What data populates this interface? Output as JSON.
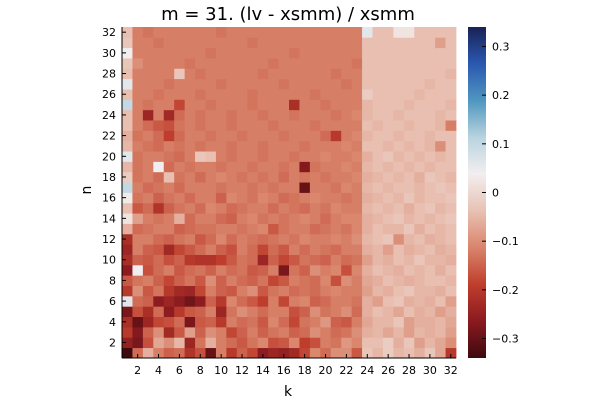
{
  "chart_data": {
    "type": "heatmap",
    "title": "m = 31. (lv - xsmm) / xsmm",
    "xlabel": "k",
    "ylabel": "n",
    "x_range": [
      1,
      32
    ],
    "y_range": [
      1,
      32
    ],
    "x_ticks": [
      2,
      4,
      6,
      8,
      10,
      12,
      14,
      16,
      18,
      20,
      22,
      24,
      26,
      28,
      30,
      32
    ],
    "y_ticks": [
      2,
      4,
      6,
      8,
      10,
      12,
      14,
      16,
      18,
      20,
      22,
      24,
      26,
      28,
      30,
      32
    ],
    "colorbar": {
      "range": [
        -0.34,
        0.34
      ],
      "ticks": [
        -0.3,
        -0.2,
        -0.1,
        0,
        0.1,
        0.2,
        0.3
      ],
      "tick_labels": [
        "−0.3",
        "−0.2",
        "−0.1",
        "0",
        "0.1",
        "0.2",
        "0.3"
      ],
      "colormap": [
        "#3d0a0e",
        "#8a1a1f",
        "#bf3e2d",
        "#d9846b",
        "#e8c1b3",
        "#f2efef",
        "#b9d3df",
        "#4f96c0",
        "#2a58b0",
        "#1a2156"
      ]
    },
    "z": [
      [
        -0.34,
        -0.14,
        -0.06,
        -0.12,
        -0.15,
        -0.14,
        -0.21,
        -0.17,
        -0.3,
        -0.12,
        -0.2,
        -0.15,
        -0.18,
        -0.26,
        -0.24,
        -0.25,
        -0.23,
        -0.18,
        -0.11,
        -0.14,
        -0.1,
        -0.1,
        -0.16,
        -0.03,
        -0.05,
        -0.02,
        -0.05,
        -0.04,
        -0.06,
        -0.03,
        -0.07,
        -0.2
      ],
      [
        -0.25,
        -0.28,
        -0.17,
        -0.07,
        -0.1,
        -0.05,
        -0.24,
        -0.13,
        -0.06,
        -0.12,
        -0.14,
        -0.16,
        -0.13,
        -0.11,
        -0.17,
        -0.16,
        -0.11,
        -0.19,
        -0.17,
        -0.12,
        -0.13,
        -0.09,
        -0.11,
        -0.04,
        -0.04,
        -0.02,
        -0.06,
        -0.03,
        -0.08,
        -0.05,
        -0.07,
        -0.1
      ],
      [
        -0.2,
        -0.27,
        -0.15,
        -0.1,
        -0.23,
        -0.16,
        -0.08,
        -0.15,
        -0.1,
        -0.12,
        -0.18,
        -0.15,
        -0.12,
        -0.15,
        -0.13,
        -0.12,
        -0.15,
        -0.14,
        -0.1,
        -0.12,
        -0.14,
        -0.13,
        -0.1,
        -0.06,
        -0.05,
        -0.07,
        -0.05,
        -0.08,
        -0.05,
        -0.06,
        -0.05,
        -0.08
      ],
      [
        -0.22,
        -0.3,
        -0.24,
        -0.18,
        -0.17,
        -0.14,
        -0.28,
        -0.16,
        -0.15,
        -0.2,
        -0.12,
        -0.14,
        -0.13,
        -0.16,
        -0.11,
        -0.14,
        -0.18,
        -0.13,
        -0.12,
        -0.09,
        -0.15,
        -0.16,
        -0.12,
        -0.07,
        -0.05,
        -0.05,
        -0.03,
        -0.08,
        -0.06,
        -0.06,
        -0.05,
        -0.07
      ],
      [
        -0.28,
        -0.17,
        -0.22,
        -0.14,
        -0.26,
        -0.2,
        -0.16,
        -0.15,
        -0.12,
        -0.24,
        -0.13,
        -0.1,
        -0.12,
        -0.14,
        -0.12,
        -0.12,
        -0.17,
        -0.15,
        -0.1,
        -0.13,
        -0.12,
        -0.1,
        -0.14,
        -0.06,
        -0.04,
        -0.05,
        -0.07,
        -0.04,
        -0.06,
        -0.05,
        -0.08,
        -0.06
      ],
      [
        0.06,
        -0.14,
        -0.15,
        -0.26,
        -0.24,
        -0.26,
        -0.29,
        -0.26,
        -0.15,
        -0.2,
        -0.11,
        -0.14,
        -0.16,
        -0.19,
        -0.12,
        -0.18,
        -0.12,
        -0.11,
        -0.15,
        -0.14,
        -0.12,
        -0.12,
        -0.13,
        -0.06,
        -0.08,
        -0.04,
        -0.03,
        -0.06,
        -0.05,
        -0.06,
        -0.04,
        -0.08
      ],
      [
        -0.2,
        -0.1,
        -0.16,
        -0.13,
        -0.2,
        -0.23,
        -0.24,
        -0.18,
        -0.12,
        -0.15,
        -0.16,
        -0.12,
        -0.1,
        -0.16,
        -0.13,
        -0.12,
        -0.14,
        -0.13,
        -0.14,
        -0.12,
        -0.11,
        -0.12,
        -0.12,
        -0.08,
        -0.05,
        -0.06,
        -0.04,
        -0.03,
        -0.05,
        -0.05,
        -0.06,
        -0.04
      ],
      [
        -0.16,
        -0.13,
        -0.12,
        -0.15,
        -0.18,
        -0.15,
        -0.13,
        -0.16,
        -0.1,
        -0.15,
        -0.12,
        -0.14,
        -0.15,
        -0.13,
        -0.18,
        -0.16,
        -0.12,
        -0.13,
        -0.14,
        -0.11,
        -0.17,
        -0.1,
        -0.12,
        -0.07,
        -0.06,
        -0.04,
        -0.05,
        -0.06,
        -0.05,
        -0.04,
        -0.04,
        -0.05
      ],
      [
        -0.26,
        0.04,
        -0.17,
        -0.14,
        -0.12,
        -0.16,
        -0.14,
        -0.13,
        -0.15,
        -0.12,
        -0.14,
        -0.13,
        -0.16,
        -0.15,
        -0.12,
        -0.28,
        -0.13,
        -0.15,
        -0.1,
        -0.12,
        -0.11,
        -0.17,
        -0.11,
        -0.06,
        -0.04,
        -0.05,
        -0.06,
        -0.04,
        -0.05,
        -0.04,
        -0.06,
        -0.04
      ],
      [
        -0.22,
        -0.15,
        -0.16,
        -0.14,
        -0.17,
        -0.15,
        -0.2,
        -0.21,
        -0.21,
        -0.19,
        -0.16,
        -0.13,
        -0.14,
        -0.24,
        -0.15,
        -0.18,
        -0.16,
        -0.13,
        -0.14,
        -0.15,
        -0.12,
        -0.14,
        -0.13,
        -0.08,
        -0.05,
        -0.06,
        -0.04,
        -0.05,
        -0.03,
        -0.05,
        -0.05,
        -0.06
      ],
      [
        -0.24,
        -0.12,
        -0.15,
        -0.16,
        -0.23,
        -0.18,
        -0.16,
        -0.14,
        -0.12,
        -0.15,
        -0.17,
        -0.12,
        -0.14,
        -0.18,
        -0.14,
        -0.16,
        -0.12,
        -0.14,
        -0.12,
        -0.13,
        -0.14,
        -0.12,
        -0.12,
        -0.06,
        -0.05,
        -0.08,
        -0.04,
        -0.06,
        -0.05,
        -0.04,
        -0.06,
        -0.05
      ],
      [
        -0.22,
        -0.12,
        -0.12,
        -0.14,
        -0.15,
        -0.13,
        -0.12,
        -0.16,
        -0.14,
        -0.11,
        -0.14,
        -0.12,
        -0.13,
        -0.14,
        -0.13,
        -0.12,
        -0.13,
        -0.11,
        -0.12,
        -0.12,
        -0.11,
        -0.12,
        -0.1,
        -0.05,
        -0.04,
        -0.03,
        -0.1,
        -0.05,
        -0.04,
        -0.06,
        -0.05,
        -0.04
      ],
      [
        -0.06,
        -0.14,
        -0.13,
        -0.12,
        -0.12,
        -0.15,
        -0.14,
        -0.13,
        -0.13,
        -0.12,
        -0.12,
        -0.13,
        -0.12,
        -0.11,
        -0.16,
        -0.13,
        -0.12,
        -0.12,
        -0.14,
        -0.13,
        -0.12,
        -0.13,
        -0.11,
        -0.06,
        -0.04,
        -0.05,
        -0.05,
        -0.03,
        -0.06,
        -0.04,
        -0.05,
        -0.04
      ],
      [
        0.02,
        -0.08,
        -0.12,
        -0.13,
        -0.12,
        -0.06,
        -0.14,
        -0.12,
        -0.12,
        -0.14,
        -0.15,
        -0.12,
        -0.11,
        -0.13,
        -0.12,
        -0.13,
        -0.12,
        -0.11,
        -0.12,
        -0.14,
        -0.12,
        -0.11,
        -0.11,
        -0.06,
        -0.05,
        -0.04,
        -0.03,
        -0.05,
        -0.04,
        -0.05,
        -0.04,
        -0.03
      ],
      [
        -0.04,
        -0.16,
        -0.14,
        -0.21,
        -0.15,
        -0.13,
        -0.12,
        -0.14,
        -0.11,
        -0.12,
        -0.14,
        -0.13,
        -0.12,
        -0.12,
        -0.14,
        -0.12,
        -0.13,
        -0.14,
        -0.12,
        -0.13,
        -0.11,
        -0.12,
        -0.12,
        -0.05,
        -0.04,
        -0.05,
        -0.04,
        -0.06,
        -0.04,
        -0.03,
        -0.05,
        -0.04
      ],
      [
        0.03,
        -0.13,
        -0.12,
        -0.15,
        -0.13,
        -0.12,
        -0.14,
        -0.12,
        -0.12,
        -0.15,
        -0.11,
        -0.12,
        -0.13,
        -0.11,
        -0.12,
        -0.14,
        -0.13,
        -0.12,
        -0.11,
        -0.12,
        -0.12,
        -0.13,
        -0.12,
        -0.06,
        -0.05,
        -0.04,
        -0.05,
        -0.03,
        -0.05,
        -0.04,
        -0.04,
        -0.03
      ],
      [
        0.1,
        -0.12,
        -0.14,
        -0.13,
        -0.12,
        -0.14,
        -0.12,
        -0.12,
        -0.12,
        -0.13,
        -0.12,
        -0.12,
        -0.13,
        -0.12,
        -0.13,
        -0.12,
        -0.12,
        -0.3,
        -0.12,
        -0.12,
        -0.13,
        -0.11,
        -0.12,
        -0.05,
        -0.04,
        -0.05,
        -0.04,
        -0.04,
        -0.05,
        -0.04,
        -0.03,
        -0.04
      ],
      [
        -0.02,
        -0.13,
        -0.12,
        -0.14,
        -0.04,
        -0.13,
        -0.12,
        -0.14,
        -0.12,
        -0.11,
        -0.12,
        -0.13,
        -0.12,
        -0.13,
        -0.12,
        -0.14,
        -0.12,
        -0.13,
        -0.12,
        -0.13,
        -0.12,
        -0.12,
        -0.11,
        -0.06,
        -0.05,
        -0.04,
        -0.05,
        -0.04,
        -0.06,
        -0.03,
        -0.04,
        -0.05
      ],
      [
        -0.05,
        -0.13,
        -0.12,
        0.04,
        -0.14,
        -0.12,
        -0.13,
        -0.12,
        -0.12,
        -0.13,
        -0.12,
        -0.12,
        -0.13,
        -0.12,
        -0.12,
        -0.13,
        -0.12,
        -0.27,
        -0.13,
        -0.12,
        -0.12,
        -0.11,
        -0.12,
        -0.05,
        -0.04,
        -0.05,
        -0.04,
        -0.05,
        -0.04,
        -0.05,
        -0.04,
        -0.04
      ],
      [
        0.06,
        -0.13,
        -0.12,
        -0.12,
        -0.13,
        -0.14,
        -0.12,
        -0.03,
        -0.04,
        -0.12,
        -0.13,
        -0.12,
        -0.12,
        -0.13,
        -0.12,
        -0.12,
        -0.13,
        -0.12,
        -0.12,
        -0.11,
        -0.12,
        -0.12,
        -0.11,
        -0.06,
        -0.04,
        -0.03,
        -0.05,
        -0.04,
        -0.05,
        -0.04,
        -0.05,
        -0.04
      ],
      [
        -0.05,
        -0.12,
        -0.13,
        -0.14,
        -0.12,
        -0.13,
        -0.12,
        -0.13,
        -0.12,
        -0.12,
        -0.13,
        -0.12,
        -0.12,
        -0.13,
        -0.12,
        -0.12,
        -0.12,
        -0.13,
        -0.12,
        -0.12,
        -0.12,
        -0.11,
        -0.12,
        -0.04,
        -0.04,
        -0.05,
        -0.04,
        -0.05,
        -0.04,
        -0.05,
        -0.1,
        -0.04
      ],
      [
        -0.06,
        -0.13,
        -0.12,
        -0.14,
        -0.19,
        -0.14,
        -0.12,
        -0.12,
        -0.13,
        -0.12,
        -0.12,
        -0.13,
        -0.12,
        -0.12,
        -0.12,
        -0.13,
        -0.12,
        -0.12,
        -0.12,
        -0.14,
        -0.2,
        -0.12,
        -0.11,
        -0.05,
        -0.04,
        -0.04,
        -0.05,
        -0.04,
        -0.04,
        -0.05,
        -0.04,
        -0.04
      ],
      [
        -0.04,
        -0.12,
        -0.14,
        -0.16,
        -0.17,
        -0.13,
        -0.12,
        -0.13,
        -0.12,
        -0.12,
        -0.13,
        -0.12,
        -0.12,
        -0.12,
        -0.13,
        -0.12,
        -0.12,
        -0.12,
        -0.13,
        -0.12,
        -0.12,
        -0.12,
        -0.12,
        -0.04,
        -0.05,
        -0.04,
        -0.04,
        -0.05,
        -0.04,
        -0.04,
        -0.05,
        -0.12
      ],
      [
        -0.04,
        -0.12,
        -0.24,
        -0.12,
        -0.23,
        -0.14,
        -0.12,
        -0.13,
        -0.12,
        -0.12,
        -0.13,
        -0.12,
        -0.12,
        -0.13,
        -0.12,
        -0.12,
        -0.13,
        -0.12,
        -0.12,
        -0.12,
        -0.13,
        -0.12,
        -0.11,
        -0.05,
        -0.04,
        -0.04,
        -0.05,
        -0.04,
        -0.04,
        -0.04,
        -0.05,
        -0.04
      ],
      [
        0.1,
        -0.12,
        -0.13,
        -0.12,
        -0.12,
        -0.18,
        -0.12,
        -0.12,
        -0.13,
        -0.12,
        -0.12,
        -0.12,
        -0.13,
        -0.12,
        -0.12,
        -0.12,
        -0.22,
        -0.12,
        -0.12,
        -0.13,
        -0.12,
        -0.12,
        -0.12,
        -0.05,
        -0.04,
        -0.04,
        -0.04,
        -0.05,
        -0.04,
        -0.04,
        -0.04,
        -0.05
      ],
      [
        -0.04,
        -0.12,
        -0.12,
        -0.13,
        -0.12,
        -0.12,
        -0.12,
        -0.13,
        -0.12,
        -0.12,
        -0.12,
        -0.12,
        -0.13,
        -0.12,
        -0.12,
        -0.12,
        -0.12,
        -0.12,
        -0.13,
        -0.12,
        -0.12,
        -0.12,
        -0.12,
        -0.02,
        -0.04,
        -0.04,
        -0.04,
        -0.04,
        -0.05,
        -0.04,
        -0.04,
        -0.04
      ],
      [
        0.06,
        -0.12,
        -0.12,
        -0.12,
        -0.13,
        -0.12,
        -0.12,
        -0.12,
        -0.12,
        -0.13,
        -0.12,
        -0.12,
        -0.12,
        -0.12,
        -0.12,
        -0.13,
        -0.12,
        -0.12,
        -0.12,
        -0.12,
        -0.12,
        -0.13,
        -0.12,
        -0.04,
        -0.04,
        -0.04,
        -0.04,
        -0.04,
        -0.04,
        -0.05,
        -0.04,
        -0.04
      ],
      [
        -0.04,
        -0.12,
        -0.12,
        -0.12,
        -0.12,
        -0.03,
        -0.12,
        -0.13,
        -0.12,
        -0.12,
        -0.12,
        -0.12,
        -0.12,
        -0.13,
        -0.12,
        -0.12,
        -0.12,
        -0.12,
        -0.12,
        -0.12,
        -0.13,
        -0.12,
        -0.12,
        -0.04,
        -0.04,
        -0.04,
        -0.04,
        -0.04,
        -0.04,
        -0.04,
        -0.04,
        -0.05
      ],
      [
        -0.03,
        -0.1,
        -0.12,
        -0.12,
        -0.12,
        -0.12,
        -0.13,
        -0.12,
        -0.12,
        -0.12,
        -0.12,
        -0.12,
        -0.12,
        -0.12,
        -0.13,
        -0.12,
        -0.12,
        -0.12,
        -0.12,
        -0.12,
        -0.12,
        -0.12,
        -0.13,
        -0.04,
        -0.04,
        -0.04,
        -0.04,
        -0.04,
        -0.04,
        -0.04,
        -0.04,
        -0.04
      ],
      [
        0.04,
        -0.12,
        -0.12,
        -0.12,
        -0.12,
        -0.12,
        -0.12,
        -0.12,
        -0.13,
        -0.12,
        -0.12,
        -0.12,
        -0.12,
        -0.12,
        -0.12,
        -0.12,
        -0.13,
        -0.12,
        -0.12,
        -0.12,
        -0.12,
        -0.12,
        -0.12,
        -0.04,
        -0.04,
        -0.04,
        -0.04,
        -0.04,
        -0.04,
        -0.04,
        -0.04,
        -0.04
      ],
      [
        -0.03,
        -0.12,
        -0.12,
        -0.13,
        -0.12,
        -0.12,
        -0.12,
        -0.12,
        -0.12,
        -0.12,
        -0.12,
        -0.12,
        -0.13,
        -0.12,
        -0.12,
        -0.12,
        -0.12,
        -0.12,
        -0.12,
        -0.12,
        -0.12,
        -0.12,
        -0.12,
        -0.04,
        -0.04,
        -0.04,
        -0.04,
        -0.04,
        -0.04,
        -0.04,
        -0.08,
        -0.04
      ],
      [
        -0.04,
        -0.12,
        -0.13,
        -0.12,
        -0.12,
        -0.12,
        -0.12,
        -0.12,
        -0.12,
        -0.13,
        -0.12,
        -0.12,
        -0.12,
        -0.12,
        -0.12,
        -0.12,
        -0.12,
        -0.12,
        -0.12,
        -0.12,
        -0.12,
        -0.12,
        -0.12,
        0.06,
        -0.04,
        -0.04,
        0.02,
        0.02,
        -0.04,
        -0.04,
        -0.04,
        -0.04
      ]
    ]
  }
}
